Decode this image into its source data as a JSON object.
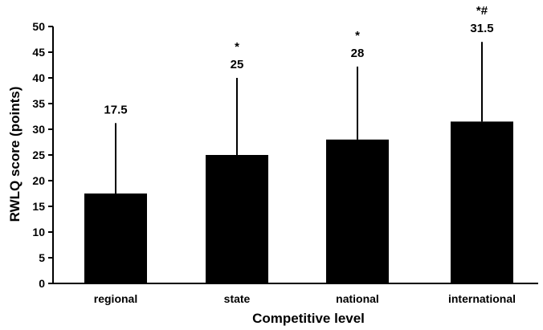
{
  "chart_data": {
    "type": "bar",
    "xlabel": "Competitive level",
    "ylabel": "RWLQ score (points)",
    "ylim": [
      0,
      50
    ],
    "yticks": [
      0,
      5,
      10,
      15,
      20,
      25,
      30,
      35,
      40,
      45,
      50
    ],
    "categories": [
      "regional",
      "state",
      "national",
      "international"
    ],
    "values": [
      17.5,
      25,
      28,
      31.5
    ],
    "error_upper": [
      31.2,
      40.0,
      42.2,
      47.0
    ],
    "value_labels": [
      "17.5",
      "25",
      "28",
      "31.5"
    ],
    "significance_labels": [
      "",
      "*",
      "*",
      "*#"
    ],
    "grid": false,
    "bar_color": "#000000"
  }
}
